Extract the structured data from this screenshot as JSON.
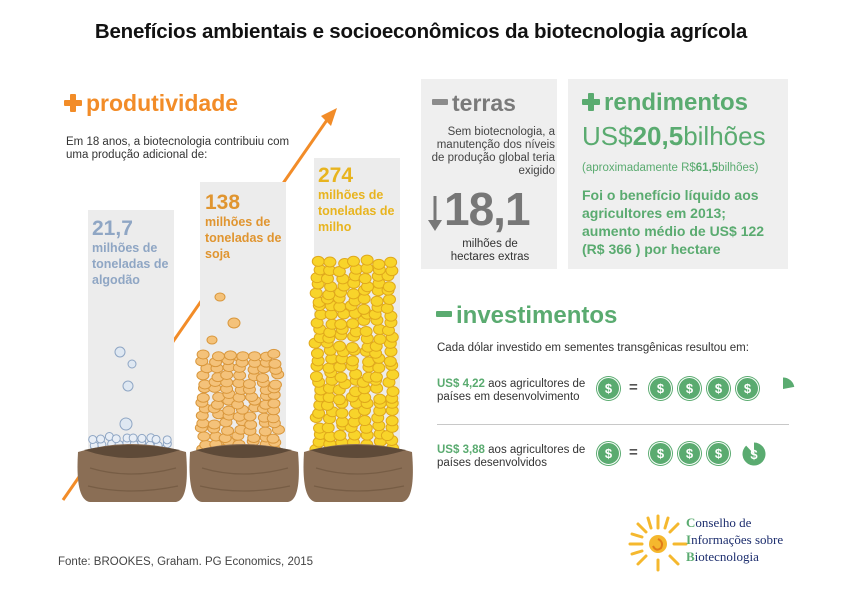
{
  "title": "Benefícios ambientais e socioeconômicos da biotecnologia agrícola",
  "produtividade": {
    "heading": "produtividade",
    "intro": "Em 18 anos, a biotecnologia contribuiu com uma produção adicional de:",
    "crops": [
      {
        "value": "21,7",
        "label": "milhões de toneladas de algodão",
        "color": "#8fa6c4"
      },
      {
        "value": "138",
        "label": "milhões de toneladas de soja",
        "color": "#e09530"
      },
      {
        "value": "274",
        "label": "milhões de toneladas de milho",
        "color": "#e8b41f"
      }
    ]
  },
  "terras": {
    "heading": "terras",
    "text": "Sem biotecnologia, a manutenção dos níveis de produção global teria exigido",
    "value": "18,1",
    "unit": "milhões de hectares extras"
  },
  "rendimentos": {
    "heading": "rendimentos",
    "prefix": "US$",
    "value": "20,5",
    "suffix": "bilhões",
    "approx_prefix": "(aproximadamente R$",
    "approx_value": "61,5",
    "approx_suffix": "bilhões)",
    "benefit": "Foi o benefício líquido aos agricultores em 2013; aumento médio de US$ 122 (R$ 366 ) por hectare"
  },
  "investimentos": {
    "heading": "investimentos",
    "intro": "Cada dólar investido em sementes transgênicas resultou em:",
    "rows": [
      {
        "amount": "US$ 4,22",
        "text": "aos agricultores de países em desenvolvimento",
        "coins": 4.22
      },
      {
        "amount": "US$ 3,88",
        "text": "aos agricultores de países desenvolvidos",
        "coins": 3.88
      }
    ],
    "coin_symbol": "$",
    "equals": "="
  },
  "source": "Fonte: BROOKES, Graham. PG Economics, 2015",
  "logo": {
    "lines": [
      {
        "initial": "C",
        "rest": "onselho de"
      },
      {
        "initial": "I",
        "rest": "nformações sobre"
      },
      {
        "initial": "B",
        "rest": "iotecnologia"
      }
    ]
  },
  "colors": {
    "orange": "#f28c28",
    "green": "#5aab70",
    "gray": "#7a7a7a",
    "panel": "#efefef"
  }
}
